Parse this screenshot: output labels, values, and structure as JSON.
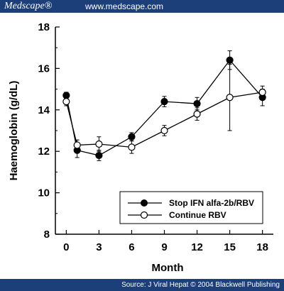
{
  "header": {
    "brand": "Medscape®",
    "site": "www.medscape.com"
  },
  "footer": {
    "source": "Source: J Viral Hepat © 2004 Blackwell Publishing"
  },
  "chart_data": {
    "type": "line",
    "title": "",
    "xlabel": "Month",
    "ylabel": "Haemoglobin (g/dL)",
    "xlim": [
      -1,
      19
    ],
    "ylim": [
      8,
      18
    ],
    "xticks": [
      0,
      3,
      6,
      9,
      12,
      15,
      18
    ],
    "yticks": [
      8,
      10,
      12,
      14,
      16,
      18
    ],
    "legend_position": "bottom-right",
    "grid": false,
    "series": [
      {
        "name": "Stop IFN alfa-2b/RBV",
        "marker": "filled-circle",
        "x": [
          0,
          1,
          3,
          6,
          9,
          12,
          15,
          18
        ],
        "y": [
          14.7,
          12.05,
          11.8,
          12.7,
          14.4,
          14.3,
          16.4,
          14.6
        ],
        "err": [
          0.15,
          0.35,
          0.25,
          0.2,
          0.25,
          0.3,
          0.45,
          0.4
        ]
      },
      {
        "name": "Continue RBV",
        "marker": "open-circle",
        "x": [
          0,
          1,
          3,
          6,
          9,
          12,
          15,
          18
        ],
        "y": [
          14.4,
          12.3,
          12.35,
          12.2,
          13.0,
          13.8,
          14.6,
          14.85
        ],
        "err": [
          0.2,
          0.25,
          0.35,
          0.3,
          0.25,
          0.3,
          1.6,
          0.3
        ]
      }
    ]
  }
}
